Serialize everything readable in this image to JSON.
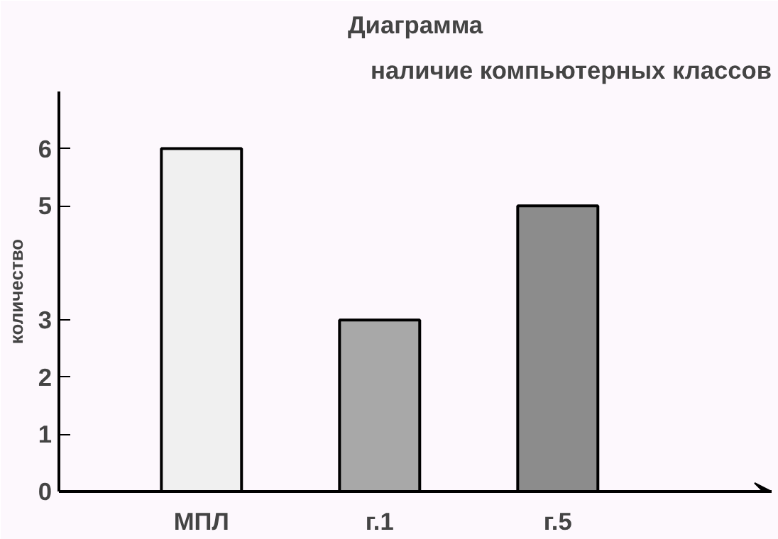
{
  "chart_data": {
    "type": "bar",
    "title": "Диаграмма",
    "subtitle": "наличие компьютерных классов",
    "ylabel": "количество",
    "categories": [
      "МПЛ",
      "г.1",
      "г.5"
    ],
    "values": [
      6,
      3,
      5
    ],
    "colors": [
      "#f0f0f0",
      "#a8a8a8",
      "#8c8c8c"
    ],
    "ylim": [
      0,
      7
    ],
    "yticks": [
      0,
      1,
      2,
      3,
      5,
      6
    ],
    "grid": false
  }
}
